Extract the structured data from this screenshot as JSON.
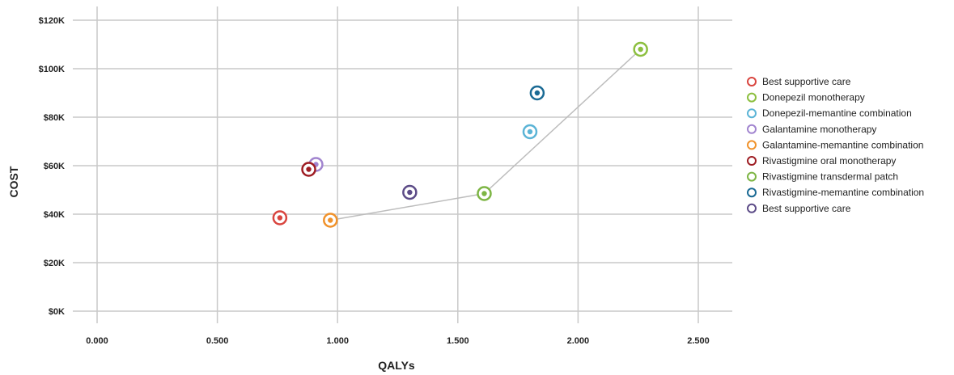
{
  "chart_data": {
    "type": "scatter",
    "title": "",
    "xlabel": "QALYs",
    "ylabel": "COST",
    "xlim": [
      0,
      2.5
    ],
    "ylim": [
      0,
      120000
    ],
    "x_ticks": [
      "0.000",
      "0.500",
      "1.000",
      "1.500",
      "2.000",
      "2.500"
    ],
    "y_ticks": [
      "$0K",
      "$20K",
      "$40K",
      "$60K",
      "$80K",
      "$100K",
      "$120K"
    ],
    "grid": true,
    "legend_position": "right",
    "series": [
      {
        "name": "Best supportive care",
        "color": "#d9453f",
        "x": 0.76,
        "y": 38500
      },
      {
        "name": "Donepezil monotherapy",
        "color": "#8cbf3f",
        "x": 2.26,
        "y": 108000
      },
      {
        "name": "Donepezil-memantine combination",
        "color": "#5bb4d6",
        "x": 1.8,
        "y": 74000
      },
      {
        "name": "Galantamine monotherapy",
        "color": "#a184cf",
        "x": 0.91,
        "y": 60500
      },
      {
        "name": "Galantamine-memantine combination",
        "color": "#f0922b",
        "x": 0.97,
        "y": 37500
      },
      {
        "name": "Rivastigmine oral monotherapy",
        "color": "#9e1d23",
        "x": 0.88,
        "y": 58500
      },
      {
        "name": "Rivastigmine transdermal patch",
        "color": "#7db544",
        "x": 1.61,
        "y": 48500
      },
      {
        "name": "Rivastigmine-memantine combination",
        "color": "#1a6a94",
        "x": 1.83,
        "y": 90000
      },
      {
        "name": "Best supportive care",
        "color": "#5c4b87",
        "x": 1.3,
        "y": 49000
      }
    ],
    "frontier": [
      {
        "x": 0.97,
        "y": 37500
      },
      {
        "x": 1.61,
        "y": 48500
      },
      {
        "x": 2.26,
        "y": 108000
      }
    ]
  }
}
